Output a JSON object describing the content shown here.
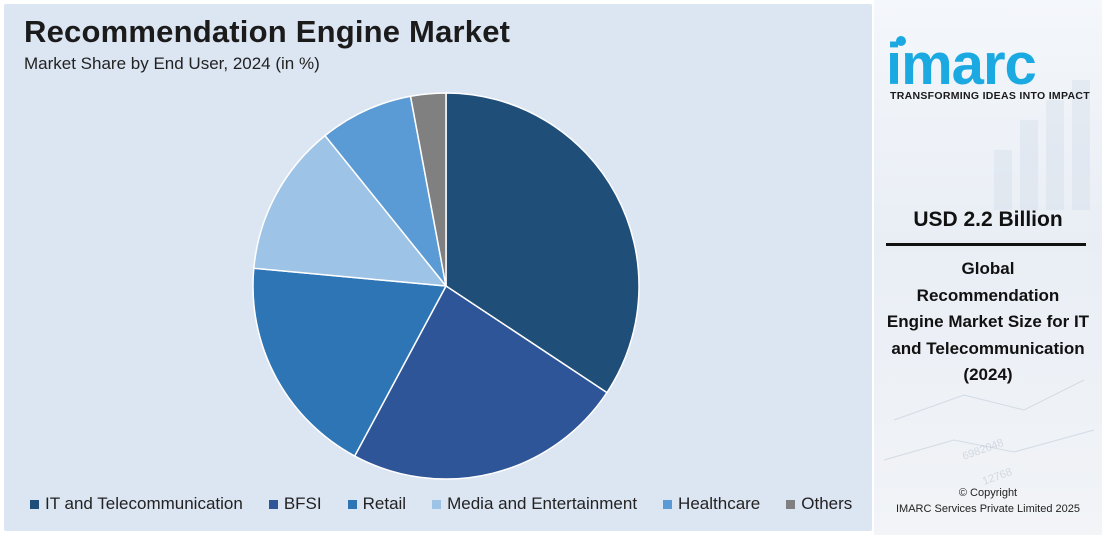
{
  "title": "Recommendation Engine Market",
  "subtitle": "Market Share by End User, 2024 (in %)",
  "chart_data": {
    "type": "pie",
    "categories": [
      "IT and Telecommunication",
      "BFSI",
      "Retail",
      "Media and Entertainment",
      "Healthcare",
      "Others"
    ],
    "values": [
      35,
      24,
      19,
      13,
      8,
      3
    ],
    "colors": [
      "#1f4e79",
      "#2e5597",
      "#2e75b6",
      "#9dc3e6",
      "#5b9bd5",
      "#808080"
    ],
    "start_angle_deg": 0,
    "direction": "clockwise",
    "legend_position": "bottom"
  },
  "sidebar": {
    "logo_text": "imarc",
    "tagline": "TRANSFORMING IDEAS INTO IMPACT",
    "value": "USD 2.2 Billion",
    "desc_lines": [
      "Global",
      "Recommendation",
      "Engine Market Size for IT",
      "and Telecommunication",
      "(2024)"
    ],
    "copyright_line1": "© Copyright",
    "copyright_line2": "IMARC Services Private Limited 2025",
    "brand_color": "#1aa9e1"
  }
}
